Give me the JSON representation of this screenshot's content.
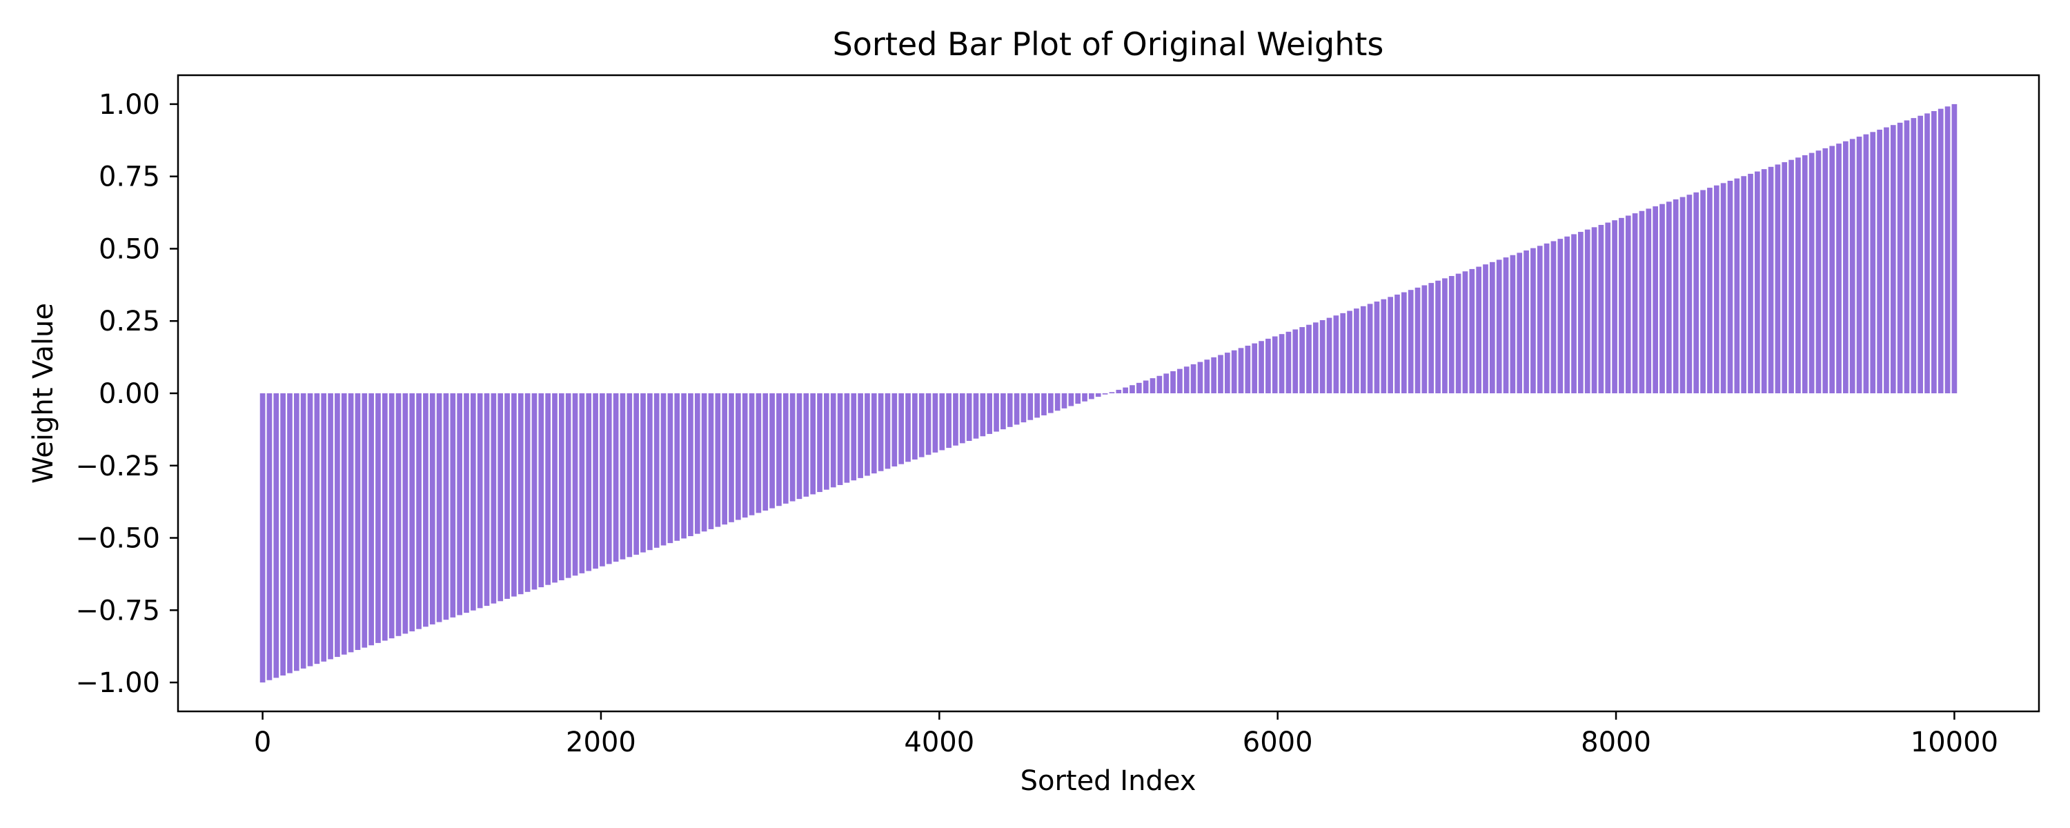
{
  "chart_data": {
    "type": "bar",
    "title": "Sorted Bar Plot of Original Weights",
    "xlabel": "Sorted Index",
    "ylabel": "Weight Value",
    "xlim": [
      -500,
      10500
    ],
    "ylim": [
      -1.1,
      1.1
    ],
    "x_ticks": [
      0,
      2000,
      4000,
      6000,
      8000,
      10000
    ],
    "x_tick_labels": [
      "0",
      "2000",
      "4000",
      "6000",
      "8000",
      "10000"
    ],
    "y_ticks": [
      -1.0,
      -0.75,
      -0.5,
      -0.25,
      0.0,
      0.25,
      0.5,
      0.75,
      1.0
    ],
    "y_tick_labels": [
      "−1.00",
      "−0.75",
      "−0.50",
      "−0.25",
      "0.00",
      "0.25",
      "0.50",
      "0.75",
      "1.00"
    ],
    "grid": false,
    "bar_color": "#9370DB",
    "series": [
      {
        "x_start": 0,
        "x_end": 10000,
        "bar_count": 250,
        "value_start": -1.0,
        "value_end": 1.0
      }
    ]
  }
}
